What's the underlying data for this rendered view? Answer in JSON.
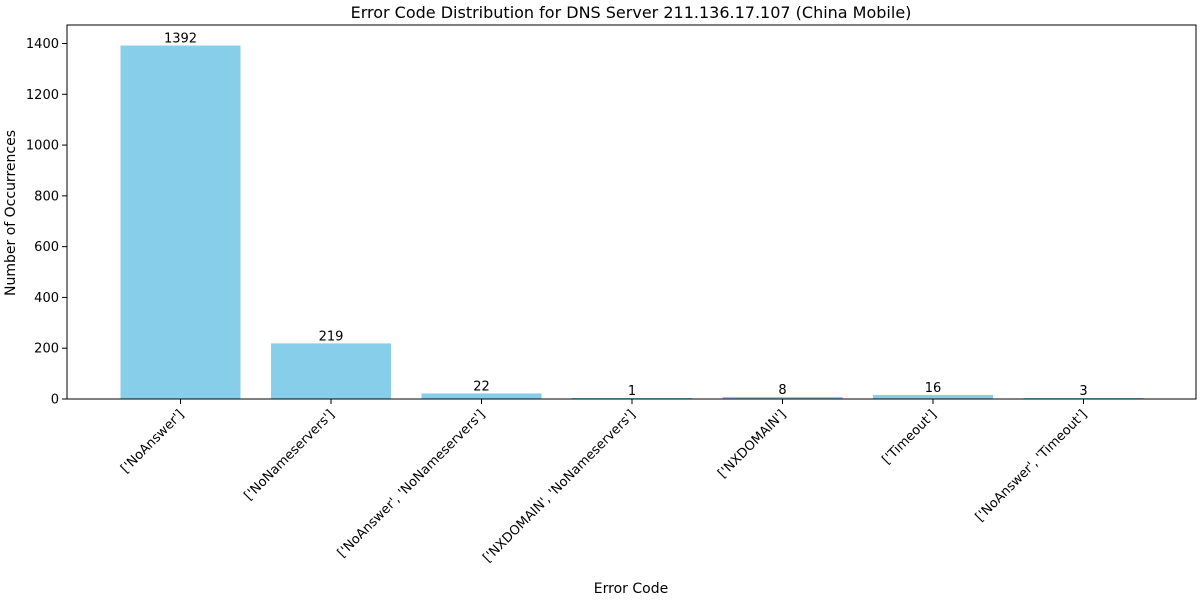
{
  "chart_data": {
    "type": "bar",
    "title": "Error Code Distribution for DNS Server 211.136.17.107 (China Mobile)",
    "xlabel": "Error Code",
    "ylabel": "Number of Occurrences",
    "categories": [
      "['NoAnswer']",
      "['NoNameservers']",
      "['NoAnswer', 'NoNameservers']",
      "['NXDOMAIN', 'NoNameservers']",
      "['NXDOMAIN']",
      "['Timeout']",
      "['NoAnswer', 'Timeout']"
    ],
    "values": [
      1392,
      219,
      22,
      1,
      8,
      16,
      3
    ],
    "ylim": [
      0,
      1400
    ],
    "yticks": [
      "0",
      "200",
      "400",
      "600",
      "800",
      "1000",
      "1200",
      "1400"
    ],
    "grid": false,
    "legend": "none",
    "bar_color": "#87ceeb"
  }
}
